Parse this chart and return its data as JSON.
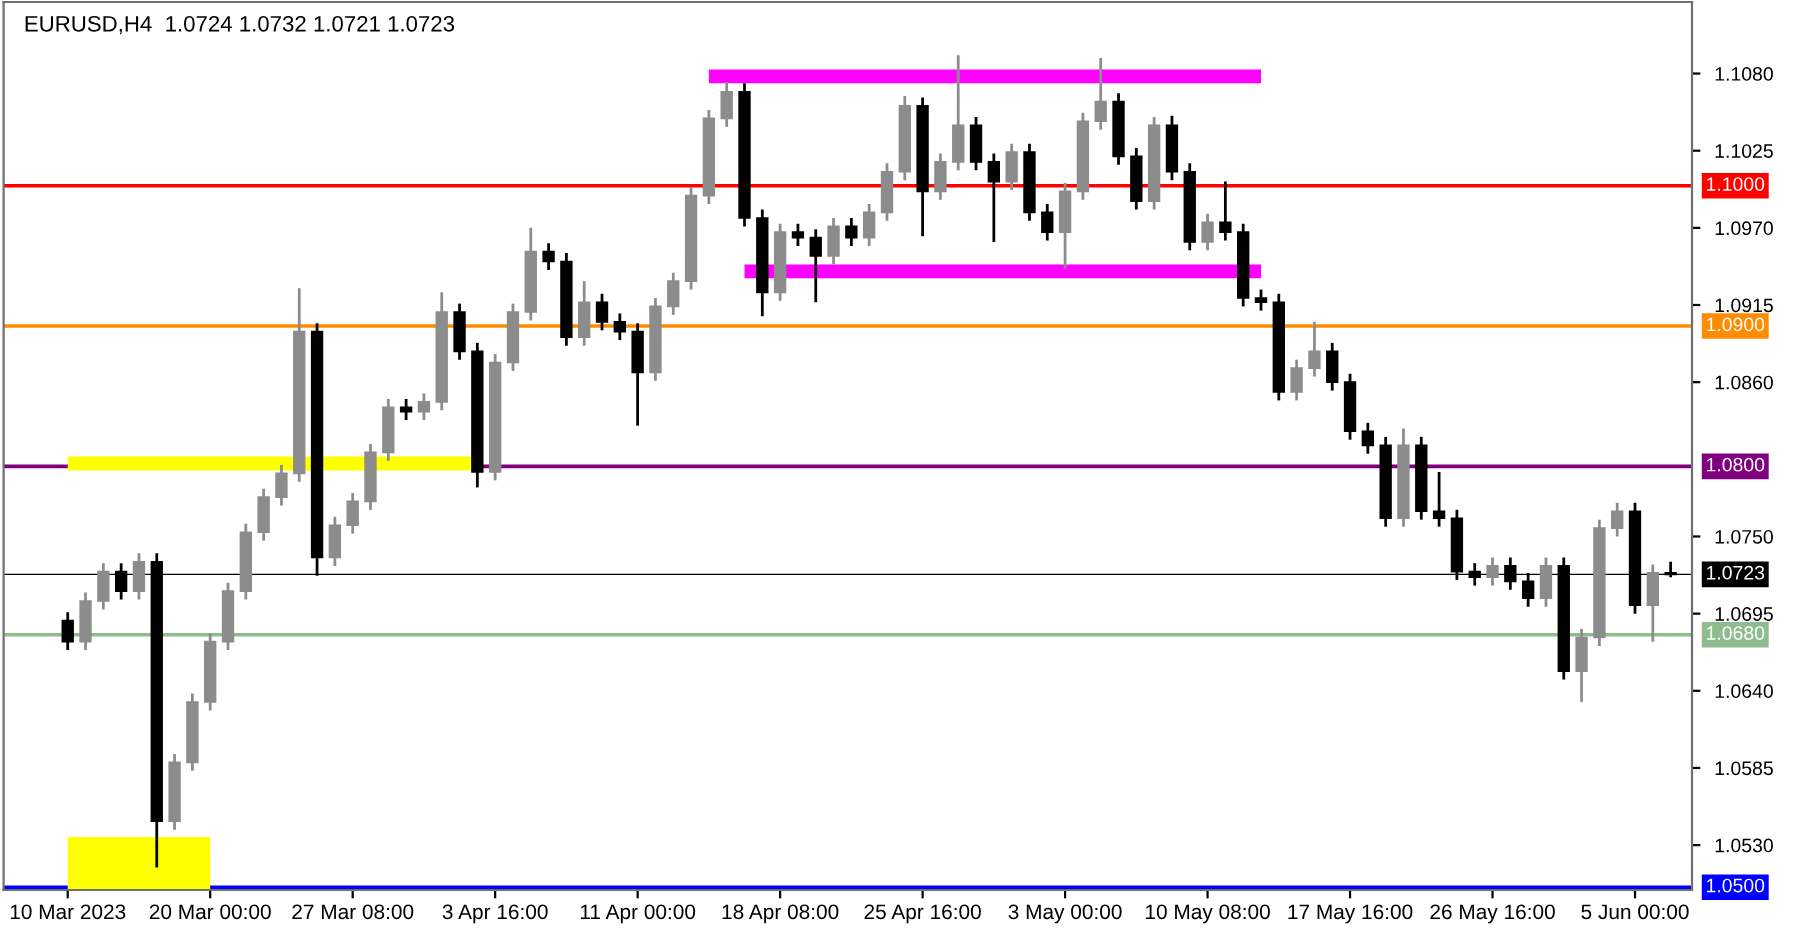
{
  "chart_data": {
    "type": "candlestick",
    "title": "EURUSD,H4  1.0724 1.0732 1.0721 1.0723",
    "categories": [
      "10 Mar 2023",
      null,
      null,
      null,
      null,
      null,
      null,
      null,
      "20 Mar 00:00",
      null,
      null,
      null,
      null,
      null,
      null,
      null,
      "27 Mar 08:00",
      null,
      null,
      null,
      null,
      null,
      null,
      null,
      "3 Apr 16:00",
      null,
      null,
      null,
      null,
      null,
      null,
      null,
      "11 Apr 00:00",
      null,
      null,
      null,
      null,
      null,
      null,
      null,
      "18 Apr 08:00",
      null,
      null,
      null,
      null,
      null,
      null,
      null,
      "25 Apr 16:00",
      null,
      null,
      null,
      null,
      null,
      null,
      null,
      "3 May 00:00",
      null,
      null,
      null,
      null,
      null,
      null,
      null,
      "10 May 08:00",
      null,
      null,
      null,
      null,
      null,
      null,
      null,
      "17 May 16:00",
      null,
      null,
      null,
      null,
      null,
      null,
      null,
      "26 May 16:00",
      null,
      null,
      null,
      null,
      null,
      null,
      null,
      "5 Jun 00:00",
      null,
      null
    ],
    "ohlc": [
      [
        1.069,
        1.0696,
        1.0669,
        1.0675
      ],
      [
        1.0675,
        1.071,
        1.0669,
        1.0704
      ],
      [
        1.0704,
        1.0731,
        1.0698,
        1.0725
      ],
      [
        1.0725,
        1.0731,
        1.0705,
        1.0711
      ],
      [
        1.0711,
        1.0738,
        1.0705,
        1.0732
      ],
      [
        1.0732,
        1.0738,
        1.0514,
        1.0547
      ],
      [
        1.0547,
        1.0595,
        1.0541,
        1.0589
      ],
      [
        1.0589,
        1.0638,
        1.0583,
        1.0632
      ],
      [
        1.0632,
        1.0681,
        1.0626,
        1.0675
      ],
      [
        1.0675,
        1.0717,
        1.0669,
        1.0711
      ],
      [
        1.0711,
        1.0759,
        1.0705,
        1.0753
      ],
      [
        1.0753,
        1.0784,
        1.0747,
        1.0778
      ],
      [
        1.0778,
        1.0801,
        1.0772,
        1.0795
      ],
      [
        1.0795,
        1.0927,
        1.0789,
        1.0896
      ],
      [
        1.0896,
        1.0902,
        1.0722,
        1.0735
      ],
      [
        1.0735,
        1.0764,
        1.0729,
        1.0758
      ],
      [
        1.0758,
        1.0781,
        1.0752,
        1.0775
      ],
      [
        1.0775,
        1.0816,
        1.0769,
        1.081
      ],
      [
        1.081,
        1.0848,
        1.0804,
        1.0842
      ],
      [
        1.0842,
        1.0848,
        1.0833,
        1.0839
      ],
      [
        1.0839,
        1.0852,
        1.0833,
        1.0846
      ],
      [
        1.0846,
        1.0924,
        1.084,
        1.091
      ],
      [
        1.091,
        1.0916,
        1.0876,
        1.0882
      ],
      [
        1.0882,
        1.0888,
        1.0785,
        1.0796
      ],
      [
        1.0796,
        1.088,
        1.079,
        1.0874
      ],
      [
        1.0874,
        1.0916,
        1.0868,
        1.091
      ],
      [
        1.091,
        1.097,
        1.0904,
        1.0953
      ],
      [
        1.0953,
        1.0959,
        1.094,
        1.0946
      ],
      [
        1.0946,
        1.0952,
        1.0886,
        1.0892
      ],
      [
        1.0892,
        1.0932,
        1.0886,
        1.0917
      ],
      [
        1.0917,
        1.0923,
        1.0897,
        1.0903
      ],
      [
        1.0903,
        1.0909,
        1.089,
        1.0896
      ],
      [
        1.0896,
        1.0902,
        1.0829,
        1.0867
      ],
      [
        1.0867,
        1.092,
        1.0861,
        1.0914
      ],
      [
        1.0914,
        1.0938,
        1.0908,
        1.0932
      ],
      [
        1.0932,
        1.0999,
        1.0926,
        1.0993
      ],
      [
        1.0993,
        1.1054,
        1.0987,
        1.1048
      ],
      [
        1.1048,
        1.1074,
        1.1042,
        1.1067
      ],
      [
        1.1067,
        1.1073,
        1.0971,
        1.0977
      ],
      [
        1.0977,
        1.0983,
        1.0907,
        1.0924
      ],
      [
        1.0924,
        1.0973,
        1.0918,
        1.0967
      ],
      [
        1.0967,
        1.0973,
        1.0957,
        1.0963
      ],
      [
        1.0963,
        1.0969,
        1.0917,
        1.095
      ],
      [
        1.095,
        1.0977,
        1.0944,
        1.0971
      ],
      [
        1.0971,
        1.0977,
        1.0957,
        1.0963
      ],
      [
        1.0963,
        1.0987,
        1.0957,
        1.0981
      ],
      [
        1.0981,
        1.1016,
        1.0975,
        1.101
      ],
      [
        1.101,
        1.1064,
        1.1004,
        1.1057
      ],
      [
        1.1057,
        1.1063,
        1.0964,
        1.0996
      ],
      [
        1.0996,
        1.1023,
        1.099,
        1.1017
      ],
      [
        1.1017,
        1.1093,
        1.1011,
        1.1043
      ],
      [
        1.1043,
        1.1049,
        1.1011,
        1.1017
      ],
      [
        1.1017,
        1.1023,
        1.096,
        1.1003
      ],
      [
        1.1003,
        1.103,
        1.0997,
        1.1024
      ],
      [
        1.1024,
        1.103,
        1.0975,
        1.0981
      ],
      [
        1.0981,
        1.0987,
        1.0961,
        1.0967
      ],
      [
        1.0967,
        1.1002,
        1.0941,
        1.0996
      ],
      [
        1.0996,
        1.1052,
        1.099,
        1.1046
      ],
      [
        1.1046,
        1.1091,
        1.104,
        1.106
      ],
      [
        1.106,
        1.1066,
        1.1015,
        1.1021
      ],
      [
        1.1021,
        1.1027,
        1.0983,
        1.0989
      ],
      [
        1.0989,
        1.1049,
        1.0983,
        1.1043
      ],
      [
        1.1043,
        1.105,
        1.1004,
        1.101
      ],
      [
        1.101,
        1.1016,
        1.0954,
        1.096
      ],
      [
        1.096,
        1.098,
        1.0954,
        1.0974
      ],
      [
        1.0974,
        1.1003,
        1.0961,
        1.0967
      ],
      [
        1.0967,
        1.0973,
        1.0914,
        1.092
      ],
      [
        1.092,
        1.0926,
        1.0911,
        1.0917
      ],
      [
        1.0917,
        1.0923,
        1.0847,
        1.0853
      ],
      [
        1.0853,
        1.0876,
        1.0847,
        1.087
      ],
      [
        1.087,
        1.0903,
        1.0864,
        1.0882
      ],
      [
        1.0882,
        1.0888,
        1.0854,
        1.086
      ],
      [
        1.086,
        1.0866,
        1.0819,
        1.0825
      ],
      [
        1.0825,
        1.0831,
        1.0809,
        1.0815
      ],
      [
        1.0815,
        1.0821,
        1.0757,
        1.0763
      ],
      [
        1.0763,
        1.0827,
        1.0757,
        1.0815
      ],
      [
        1.0815,
        1.0821,
        1.0762,
        1.0768
      ],
      [
        1.0768,
        1.0796,
        1.0757,
        1.0763
      ],
      [
        1.0763,
        1.0769,
        1.0719,
        1.0725
      ],
      [
        1.0725,
        1.0731,
        1.0715,
        1.0721
      ],
      [
        1.0721,
        1.0735,
        1.0715,
        1.0729
      ],
      [
        1.0729,
        1.0735,
        1.0712,
        1.0718
      ],
      [
        1.0718,
        1.0724,
        1.07,
        1.0706
      ],
      [
        1.0706,
        1.0735,
        1.07,
        1.0729
      ],
      [
        1.0729,
        1.0735,
        1.0648,
        1.0654
      ],
      [
        1.0654,
        1.0684,
        1.0632,
        1.0678
      ],
      [
        1.0678,
        1.0762,
        1.0672,
        1.0756
      ],
      [
        1.0756,
        1.0774,
        1.075,
        1.0768
      ],
      [
        1.0768,
        1.0774,
        1.0695,
        1.0701
      ],
      [
        1.0701,
        1.073,
        1.0675,
        1.0724
      ],
      [
        1.0724,
        1.0732,
        1.0721,
        1.0723
      ]
    ],
    "series": [
      {
        "type": "line",
        "color": "#ff00ff",
        "values": [
          null,
          null,
          null,
          null,
          null,
          null,
          null,
          null,
          null,
          null,
          null,
          null,
          null,
          null,
          null,
          null,
          null,
          null,
          null,
          null,
          null,
          null,
          null,
          null,
          null,
          null,
          null,
          null,
          null,
          null,
          null,
          null,
          null,
          null,
          null,
          null,
          1.1078,
          1.1078,
          1.1078,
          1.1078,
          1.1078,
          1.1078,
          1.1078,
          1.1078,
          1.1078,
          1.1078,
          1.1078,
          1.1078,
          1.1078,
          1.1078,
          1.1078,
          1.1078,
          1.1078,
          1.1078,
          1.1078,
          1.1078,
          1.1078,
          1.1078,
          1.1078,
          1.1078,
          1.1078,
          1.1078,
          1.1078,
          1.1078,
          1.1078,
          1.1078,
          1.1078,
          1.1078,
          null,
          null,
          null,
          null,
          null,
          null,
          null,
          null,
          null,
          null,
          null,
          null,
          null,
          null,
          null,
          null,
          null,
          null,
          null,
          null,
          null,
          null,
          null
        ]
      },
      {
        "type": "line",
        "color": "#ff00ff",
        "values": [
          null,
          null,
          null,
          null,
          null,
          null,
          null,
          null,
          null,
          null,
          null,
          null,
          null,
          null,
          null,
          null,
          null,
          null,
          null,
          null,
          null,
          null,
          null,
          null,
          null,
          null,
          null,
          null,
          null,
          null,
          null,
          null,
          null,
          null,
          null,
          null,
          null,
          null,
          1.0939,
          1.0939,
          1.0939,
          1.0939,
          1.0939,
          1.0939,
          1.0939,
          1.0939,
          1.0939,
          1.0939,
          1.0939,
          1.0939,
          1.0939,
          1.0939,
          1.0939,
          1.0939,
          1.0939,
          1.0939,
          1.0939,
          1.0939,
          1.0939,
          1.0939,
          1.0939,
          1.0939,
          1.0939,
          1.0939,
          1.0939,
          1.0939,
          1.0939,
          1.0939,
          null,
          null,
          null,
          null,
          null,
          null,
          null,
          null,
          null,
          null,
          null,
          null,
          null,
          null,
          null,
          null,
          null,
          null,
          null,
          null,
          null,
          null,
          null
        ]
      },
      {
        "type": "line",
        "color": "#ffff00",
        "values": [
          1.0802,
          1.0802,
          1.0802,
          1.0802,
          1.0802,
          1.0802,
          1.0802,
          1.0802,
          1.0802,
          1.0802,
          1.0802,
          1.0802,
          1.0802,
          1.0802,
          1.0802,
          1.0802,
          1.0802,
          1.0802,
          1.0802,
          1.0802,
          1.0802,
          1.0802,
          1.0802,
          1.0802,
          null,
          null,
          null,
          null,
          null,
          null,
          null,
          null,
          null,
          null,
          null,
          null,
          null,
          null,
          null,
          null,
          null,
          null,
          null,
          null,
          null,
          null,
          null,
          null,
          null,
          null,
          null,
          null,
          null,
          null,
          null,
          null,
          null,
          null,
          null,
          null,
          null,
          null,
          null,
          null,
          null,
          null,
          null,
          null,
          null,
          null,
          null,
          null,
          null,
          null,
          null,
          null,
          null,
          null,
          null,
          null,
          null,
          null,
          null,
          null,
          null,
          null,
          null,
          null,
          null,
          null,
          null
        ]
      },
      {
        "type": "line",
        "color": "#ffff00",
        "values": [
          1.0517,
          1.0517,
          1.0517,
          1.0517,
          1.0517,
          1.0517,
          1.0517,
          1.0517,
          1.0517,
          null,
          null,
          null,
          null,
          null,
          null,
          null,
          null,
          null,
          null,
          null,
          null,
          null,
          null,
          null,
          null,
          null,
          null,
          null,
          null,
          null,
          null,
          null,
          null,
          null,
          null,
          null,
          null,
          null,
          null,
          null,
          null,
          null,
          null,
          null,
          null,
          null,
          null,
          null,
          null,
          null,
          null,
          null,
          null,
          null,
          null,
          null,
          null,
          null,
          null,
          null,
          null,
          null,
          null,
          null,
          null,
          null,
          null,
          null,
          null,
          null,
          null,
          null,
          null,
          null,
          null,
          null,
          null,
          null,
          null,
          null,
          null,
          null,
          null,
          null,
          null,
          null,
          null,
          null,
          null,
          null,
          null
        ]
      }
    ],
    "ref_lines": [
      {
        "axis": "y",
        "value": 1.1,
        "label": "1.1000",
        "color": "#ff0000"
      },
      {
        "axis": "y",
        "value": 1.09,
        "label": "1.0900",
        "color": "#ff8c00"
      },
      {
        "axis": "y",
        "value": 1.08,
        "label": "1.0800",
        "color": "#800080"
      },
      {
        "axis": "y",
        "value": 1.0723,
        "label": "1.0723",
        "color": "#000000"
      },
      {
        "axis": "y",
        "value": 1.068,
        "label": "1.0680",
        "color": "#8fbc8f"
      },
      {
        "axis": "y",
        "value": 1.05,
        "label": "1.0500",
        "color": "#0000ff"
      }
    ],
    "ylim": [
      1.0498,
      1.1131
    ],
    "yticks": [
      {
        "value": 1.108,
        "label": "1.1080"
      },
      1.1025,
      {
        "value": 1.097,
        "label": "1.0970"
      },
      1.0915,
      {
        "value": 1.086,
        "label": "1.0860"
      },
      {
        "value": 1.075,
        "label": "1.0750"
      },
      1.0695,
      {
        "value": 1.064,
        "label": "1.0640"
      },
      1.0585,
      {
        "value": 1.053,
        "label": "1.0530"
      }
    ],
    "grid": false
  }
}
